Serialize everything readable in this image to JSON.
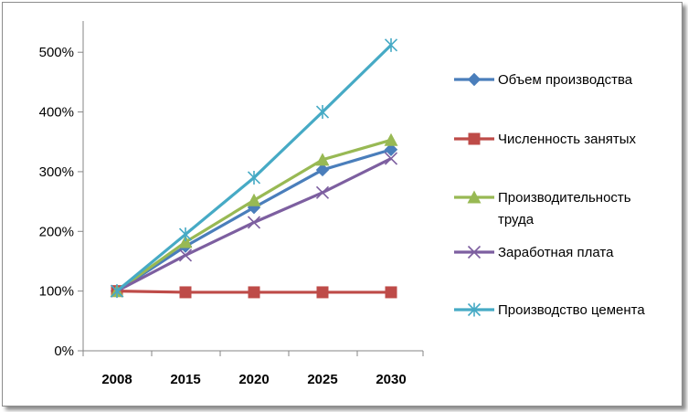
{
  "chart_data": {
    "type": "line",
    "categories": [
      "2008",
      "2015",
      "2020",
      "2025",
      "2030"
    ],
    "yticks": [
      "0%",
      "100%",
      "200%",
      "300%",
      "400%",
      "500%"
    ],
    "ylim": [
      0,
      500
    ],
    "grid": false,
    "legend_position": "right",
    "series": [
      {
        "name": "Объем производства",
        "color": "#4a7ebb",
        "marker": "diamond",
        "values": [
          100,
          175,
          240,
          303,
          337
        ]
      },
      {
        "name": "Численность занятых",
        "color": "#be4b48",
        "marker": "square",
        "values": [
          100,
          98,
          98,
          98,
          98
        ]
      },
      {
        "name": "Производительность труда",
        "color": "#98b954",
        "marker": "triangle",
        "values": [
          100,
          182,
          252,
          320,
          353
        ]
      },
      {
        "name": "Заработная плата",
        "color": "#7d5fa0",
        "marker": "x",
        "values": [
          100,
          160,
          215,
          265,
          322
        ]
      },
      {
        "name": "Производство цемента",
        "color": "#46aac5",
        "marker": "star",
        "values": [
          100,
          195,
          290,
          400,
          512
        ]
      }
    ]
  }
}
